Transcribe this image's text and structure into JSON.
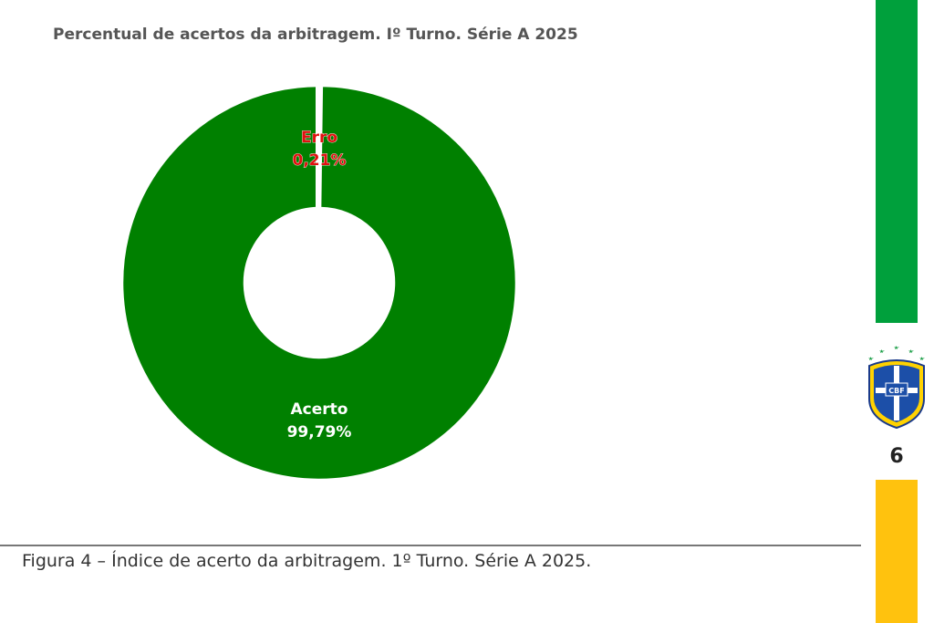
{
  "chart_data": {
    "type": "pie",
    "variant": "donut",
    "title": "Percentual de acertos da arbitragem. Iº Turno. Série A 2025",
    "slices": [
      {
        "label": "Acerto",
        "value": 99.79,
        "display": "99,79%",
        "color": "#008000",
        "label_color": "#ffffff"
      },
      {
        "label": "Erro",
        "value": 0.21,
        "display": "0,21%",
        "color": "#008000",
        "label_color": "#e01010"
      }
    ],
    "separator_color": "#ffffff"
  },
  "caption": "Figura 4 – Índice de acerto da arbitragem. 1º Turno. Série A 2025.",
  "sidebar": {
    "page_number": "6",
    "logo_text": "CBF",
    "green_color": "#00a03c",
    "yellow_color": "#ffc20e"
  }
}
